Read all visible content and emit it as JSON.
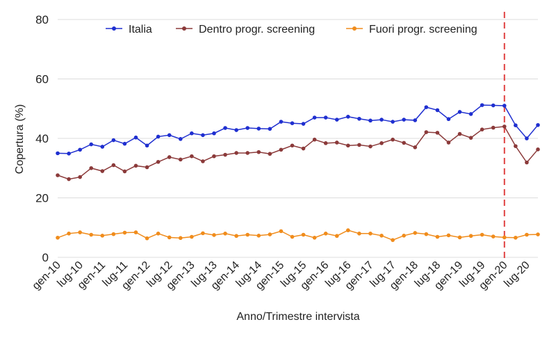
{
  "chart_data": {
    "type": "line",
    "xlabel": "Anno/Trimestre intervista",
    "ylabel": "Copertura (%)",
    "ylim": [
      0,
      80
    ],
    "yticks": [
      0,
      20,
      40,
      60,
      80
    ],
    "grid": "horizontal",
    "legend_position": "top",
    "x": [
      "gen-10",
      "apr-10",
      "lug-10",
      "ott-10",
      "gen-11",
      "apr-11",
      "lug-11",
      "ott-11",
      "gen-12",
      "apr-12",
      "lug-12",
      "ott-12",
      "gen-13",
      "apr-13",
      "lug-13",
      "ott-13",
      "gen-14",
      "apr-14",
      "lug-14",
      "ott-14",
      "gen-15",
      "apr-15",
      "lug-15",
      "ott-15",
      "gen-16",
      "apr-16",
      "lug-16",
      "ott-16",
      "gen-17",
      "apr-17",
      "lug-17",
      "ott-17",
      "gen-18",
      "apr-18",
      "lug-18",
      "ott-18",
      "gen-19",
      "apr-19",
      "lug-19",
      "ott-19",
      "gen-20",
      "apr-20",
      "lug-20",
      "ott-20"
    ],
    "xtick_labels": [
      "gen-10",
      "lug-10",
      "gen-11",
      "lug-11",
      "gen-12",
      "lug-12",
      "gen-13",
      "lug-13",
      "gen-14",
      "lug-14",
      "gen-15",
      "lug-15",
      "gen-16",
      "lug-16",
      "gen-17",
      "lug-17",
      "gen-18",
      "lug-18",
      "gen-19",
      "lug-19",
      "gen-20",
      "lug-20"
    ],
    "reference_line": {
      "x": "gen-20",
      "color": "#e04040",
      "style": "dashed"
    },
    "series": [
      {
        "name": "Italia",
        "color": "#1f2fd0",
        "values": [
          35.0,
          34.9,
          36.2,
          38.0,
          37.2,
          39.4,
          38.2,
          40.3,
          37.6,
          40.6,
          41.1,
          39.8,
          41.7,
          41.1,
          41.7,
          43.5,
          42.8,
          43.5,
          43.3,
          43.2,
          45.6,
          45.1,
          44.9,
          47.0,
          47.0,
          46.3,
          47.3,
          46.6,
          46.0,
          46.3,
          45.6,
          46.3,
          46.1,
          50.5,
          49.5,
          46.5,
          48.9,
          48.2,
          51.2,
          51.1,
          51.0,
          44.4,
          40.0,
          44.5
        ]
      },
      {
        "name": "Dentro progr. screening",
        "color": "#8b3a3a",
        "values": [
          27.6,
          26.3,
          27.0,
          30.0,
          29.0,
          31.0,
          28.9,
          30.8,
          30.3,
          32.1,
          33.7,
          32.9,
          34.0,
          32.3,
          34.0,
          34.5,
          35.1,
          35.1,
          35.4,
          34.8,
          36.2,
          37.6,
          36.6,
          39.6,
          38.4,
          38.6,
          37.6,
          37.8,
          37.3,
          38.4,
          39.6,
          38.5,
          37.0,
          42.1,
          41.9,
          38.6,
          41.5,
          40.2,
          43.0,
          43.6,
          44.0,
          37.4,
          31.9,
          36.3
        ]
      },
      {
        "name": "Fuori progr. screening",
        "color": "#f08c1c",
        "values": [
          6.6,
          8.0,
          8.4,
          7.6,
          7.3,
          7.8,
          8.3,
          8.4,
          6.4,
          8.0,
          6.7,
          6.5,
          6.9,
          8.1,
          7.5,
          8.0,
          7.2,
          7.6,
          7.3,
          7.7,
          8.8,
          6.9,
          7.6,
          6.6,
          8.0,
          7.2,
          9.1,
          8.0,
          8.0,
          7.3,
          5.8,
          7.3,
          8.2,
          7.8,
          6.9,
          7.4,
          6.7,
          7.2,
          7.6,
          7.0,
          6.7,
          6.6,
          7.6,
          7.7
        ]
      }
    ]
  }
}
